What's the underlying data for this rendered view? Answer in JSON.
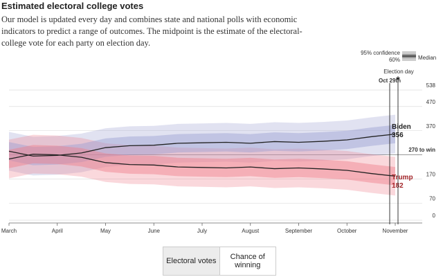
{
  "title": "Estimated electoral college votes",
  "subtitle": "Our model is updated every day and combines state and national polls with economic indicators to predict a range of outcomes. The midpoint is the estimate of the electoral-college vote for each party on election day.",
  "controls": [
    "Electoral votes",
    "Chance of winning"
  ],
  "chart_data": {
    "type": "line",
    "legend": {
      "ci95": "95% confidence",
      "ci60": "60%",
      "median": "Median"
    },
    "annotations": {
      "election_day": "Election day",
      "last_update": "Oct 29th"
    },
    "categories": [
      "March",
      null,
      "April",
      null,
      "May",
      null,
      "June",
      null,
      "July",
      null,
      "August",
      null,
      "September",
      null,
      "October",
      null,
      "November"
    ],
    "ylim": [
      0,
      538
    ],
    "yticks": [
      0,
      70,
      170,
      {
        "value": 270,
        "label": "270 to win"
      },
      370,
      470,
      538
    ],
    "grid": true,
    "series": [
      {
        "name": "Biden",
        "color": "#222222",
        "label_color": "#222222",
        "band_color": "#9b9fd2",
        "values": [
          285,
          265,
          268,
          278,
          300,
          308,
          310,
          318,
          320,
          322,
          318,
          325,
          322,
          326,
          332,
          345,
          356
        ],
        "ci95_low": [
          205,
          185,
          188,
          198,
          220,
          228,
          230,
          238,
          240,
          242,
          238,
          245,
          242,
          246,
          252,
          265,
          276
        ],
        "ci95_high": [
          365,
          345,
          348,
          358,
          380,
          388,
          390,
          398,
          400,
          402,
          398,
          405,
          402,
          406,
          412,
          425,
          436
        ],
        "ci60_low": [
          247,
          227,
          230,
          240,
          262,
          270,
          272,
          280,
          282,
          284,
          280,
          287,
          284,
          288,
          294,
          307,
          318
        ],
        "ci60_high": [
          323,
          303,
          306,
          316,
          338,
          346,
          348,
          356,
          358,
          360,
          356,
          363,
          360,
          364,
          370,
          383,
          394
        ]
      },
      {
        "name": "Trump",
        "color": "#222222",
        "label_color": "#a3262a",
        "band_color": "#ef7f8a",
        "values": [
          253,
          273,
          270,
          260,
          238,
          230,
          228,
          220,
          218,
          216,
          220,
          213,
          216,
          212,
          206,
          193,
          182
        ],
        "ci95_low": [
          173,
          193,
          190,
          180,
          158,
          150,
          148,
          140,
          138,
          136,
          140,
          133,
          136,
          132,
          126,
          113,
          102
        ],
        "ci95_high": [
          333,
          353,
          350,
          340,
          318,
          310,
          308,
          300,
          298,
          296,
          300,
          293,
          296,
          292,
          286,
          273,
          262
        ],
        "ci60_low": [
          215,
          235,
          232,
          222,
          200,
          192,
          190,
          182,
          180,
          178,
          182,
          175,
          178,
          174,
          168,
          155,
          144
        ],
        "ci60_high": [
          291,
          311,
          308,
          298,
          276,
          268,
          266,
          258,
          256,
          254,
          258,
          251,
          254,
          250,
          244,
          231,
          220
        ]
      }
    ]
  }
}
